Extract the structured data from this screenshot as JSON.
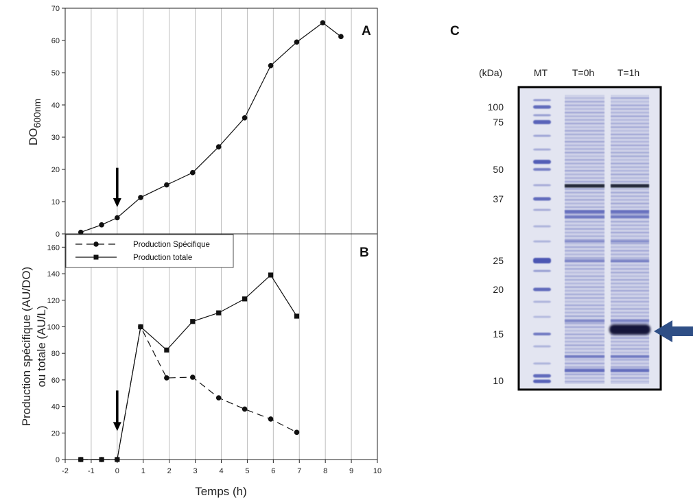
{
  "chart_data": [
    {
      "panel": "A",
      "type": "line",
      "xlabel": "Temps (h)",
      "ylabel": "DO600nm",
      "ylabel_main": "DO",
      "ylabel_sub": "600nm",
      "xlim": [
        -2,
        10
      ],
      "ylim": [
        0,
        70
      ],
      "yticks": [
        0,
        10,
        20,
        30,
        40,
        50,
        60,
        70
      ],
      "grid": "vertical",
      "series": [
        {
          "marker": "circle",
          "line": "solid",
          "x": [
            -1.4,
            -0.6,
            0,
            0.9,
            1.9,
            2.9,
            3.9,
            4.9,
            5.9,
            6.9,
            7.9,
            8.6
          ],
          "y": [
            0.5,
            2.8,
            5.0,
            11.3,
            15.2,
            19.0,
            27.0,
            36.0,
            52.2,
            59.5,
            65.5,
            61.2
          ]
        }
      ],
      "annotations": [
        {
          "type": "arrow",
          "x": 0,
          "direction": "down",
          "y_from": 20.5,
          "y_to": 8.5
        }
      ]
    },
    {
      "panel": "B",
      "type": "line",
      "xlabel": "Temps (h)",
      "ylabel": "Production spécifique (AU/DO) ou totale (AU/L)",
      "ylabel_line1": "Production spécifique (AU/DO)",
      "ylabel_line2": "ou totale (AU/L)",
      "xlim": [
        -2,
        10
      ],
      "ylim": [
        0,
        170
      ],
      "xticks": [
        -2,
        -1,
        0,
        1,
        2,
        3,
        4,
        5,
        6,
        7,
        8,
        9,
        10
      ],
      "yticks": [
        0,
        20,
        40,
        60,
        80,
        100,
        120,
        140,
        160
      ],
      "grid": "vertical",
      "legend_position": "top-left",
      "series": [
        {
          "name": "Production Spécifique",
          "marker": "circle",
          "line": "dashed",
          "x": [
            -1.4,
            -0.6,
            0,
            0.9,
            1.9,
            2.9,
            3.9,
            4.9,
            5.9,
            6.9
          ],
          "y": [
            0,
            0,
            0,
            100,
            61.5,
            62.0,
            46.5,
            38.0,
            30.5,
            20.5
          ]
        },
        {
          "name": "Production totale",
          "marker": "square",
          "line": "solid",
          "x": [
            -1.4,
            -0.6,
            0,
            0.9,
            1.9,
            2.9,
            3.9,
            4.9,
            5.9,
            6.9
          ],
          "y": [
            0,
            0,
            0,
            100,
            82.5,
            104.0,
            110.5,
            121.0,
            139.0,
            108.0
          ]
        }
      ],
      "annotations": [
        {
          "type": "arrow",
          "x": 0,
          "direction": "down",
          "y_from": 52,
          "y_to": 22
        }
      ]
    }
  ],
  "gel": {
    "panel": "C",
    "unit_label": "(kDa)",
    "lanes": [
      "MT",
      "T=0h",
      "T=1h"
    ],
    "marker_sizes": [
      "100",
      "75",
      "50",
      "37",
      "25",
      "20",
      "15",
      "10"
    ],
    "highlight": {
      "lane": "T=1h",
      "size_kda": 15,
      "arrow_color": "#2f4f86"
    },
    "stain_color": "#4c57b3"
  }
}
